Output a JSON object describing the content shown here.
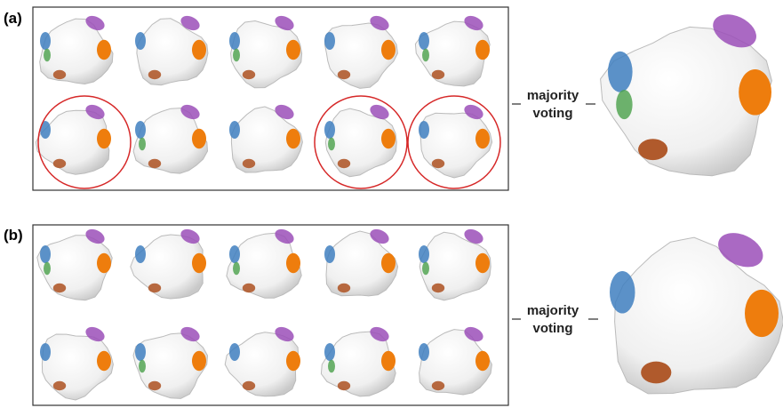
{
  "panels": [
    {
      "label": "(a)",
      "caption": [
        "majority",
        "voting"
      ]
    },
    {
      "label": "(b)",
      "caption": [
        "majority",
        "voting"
      ]
    }
  ]
}
